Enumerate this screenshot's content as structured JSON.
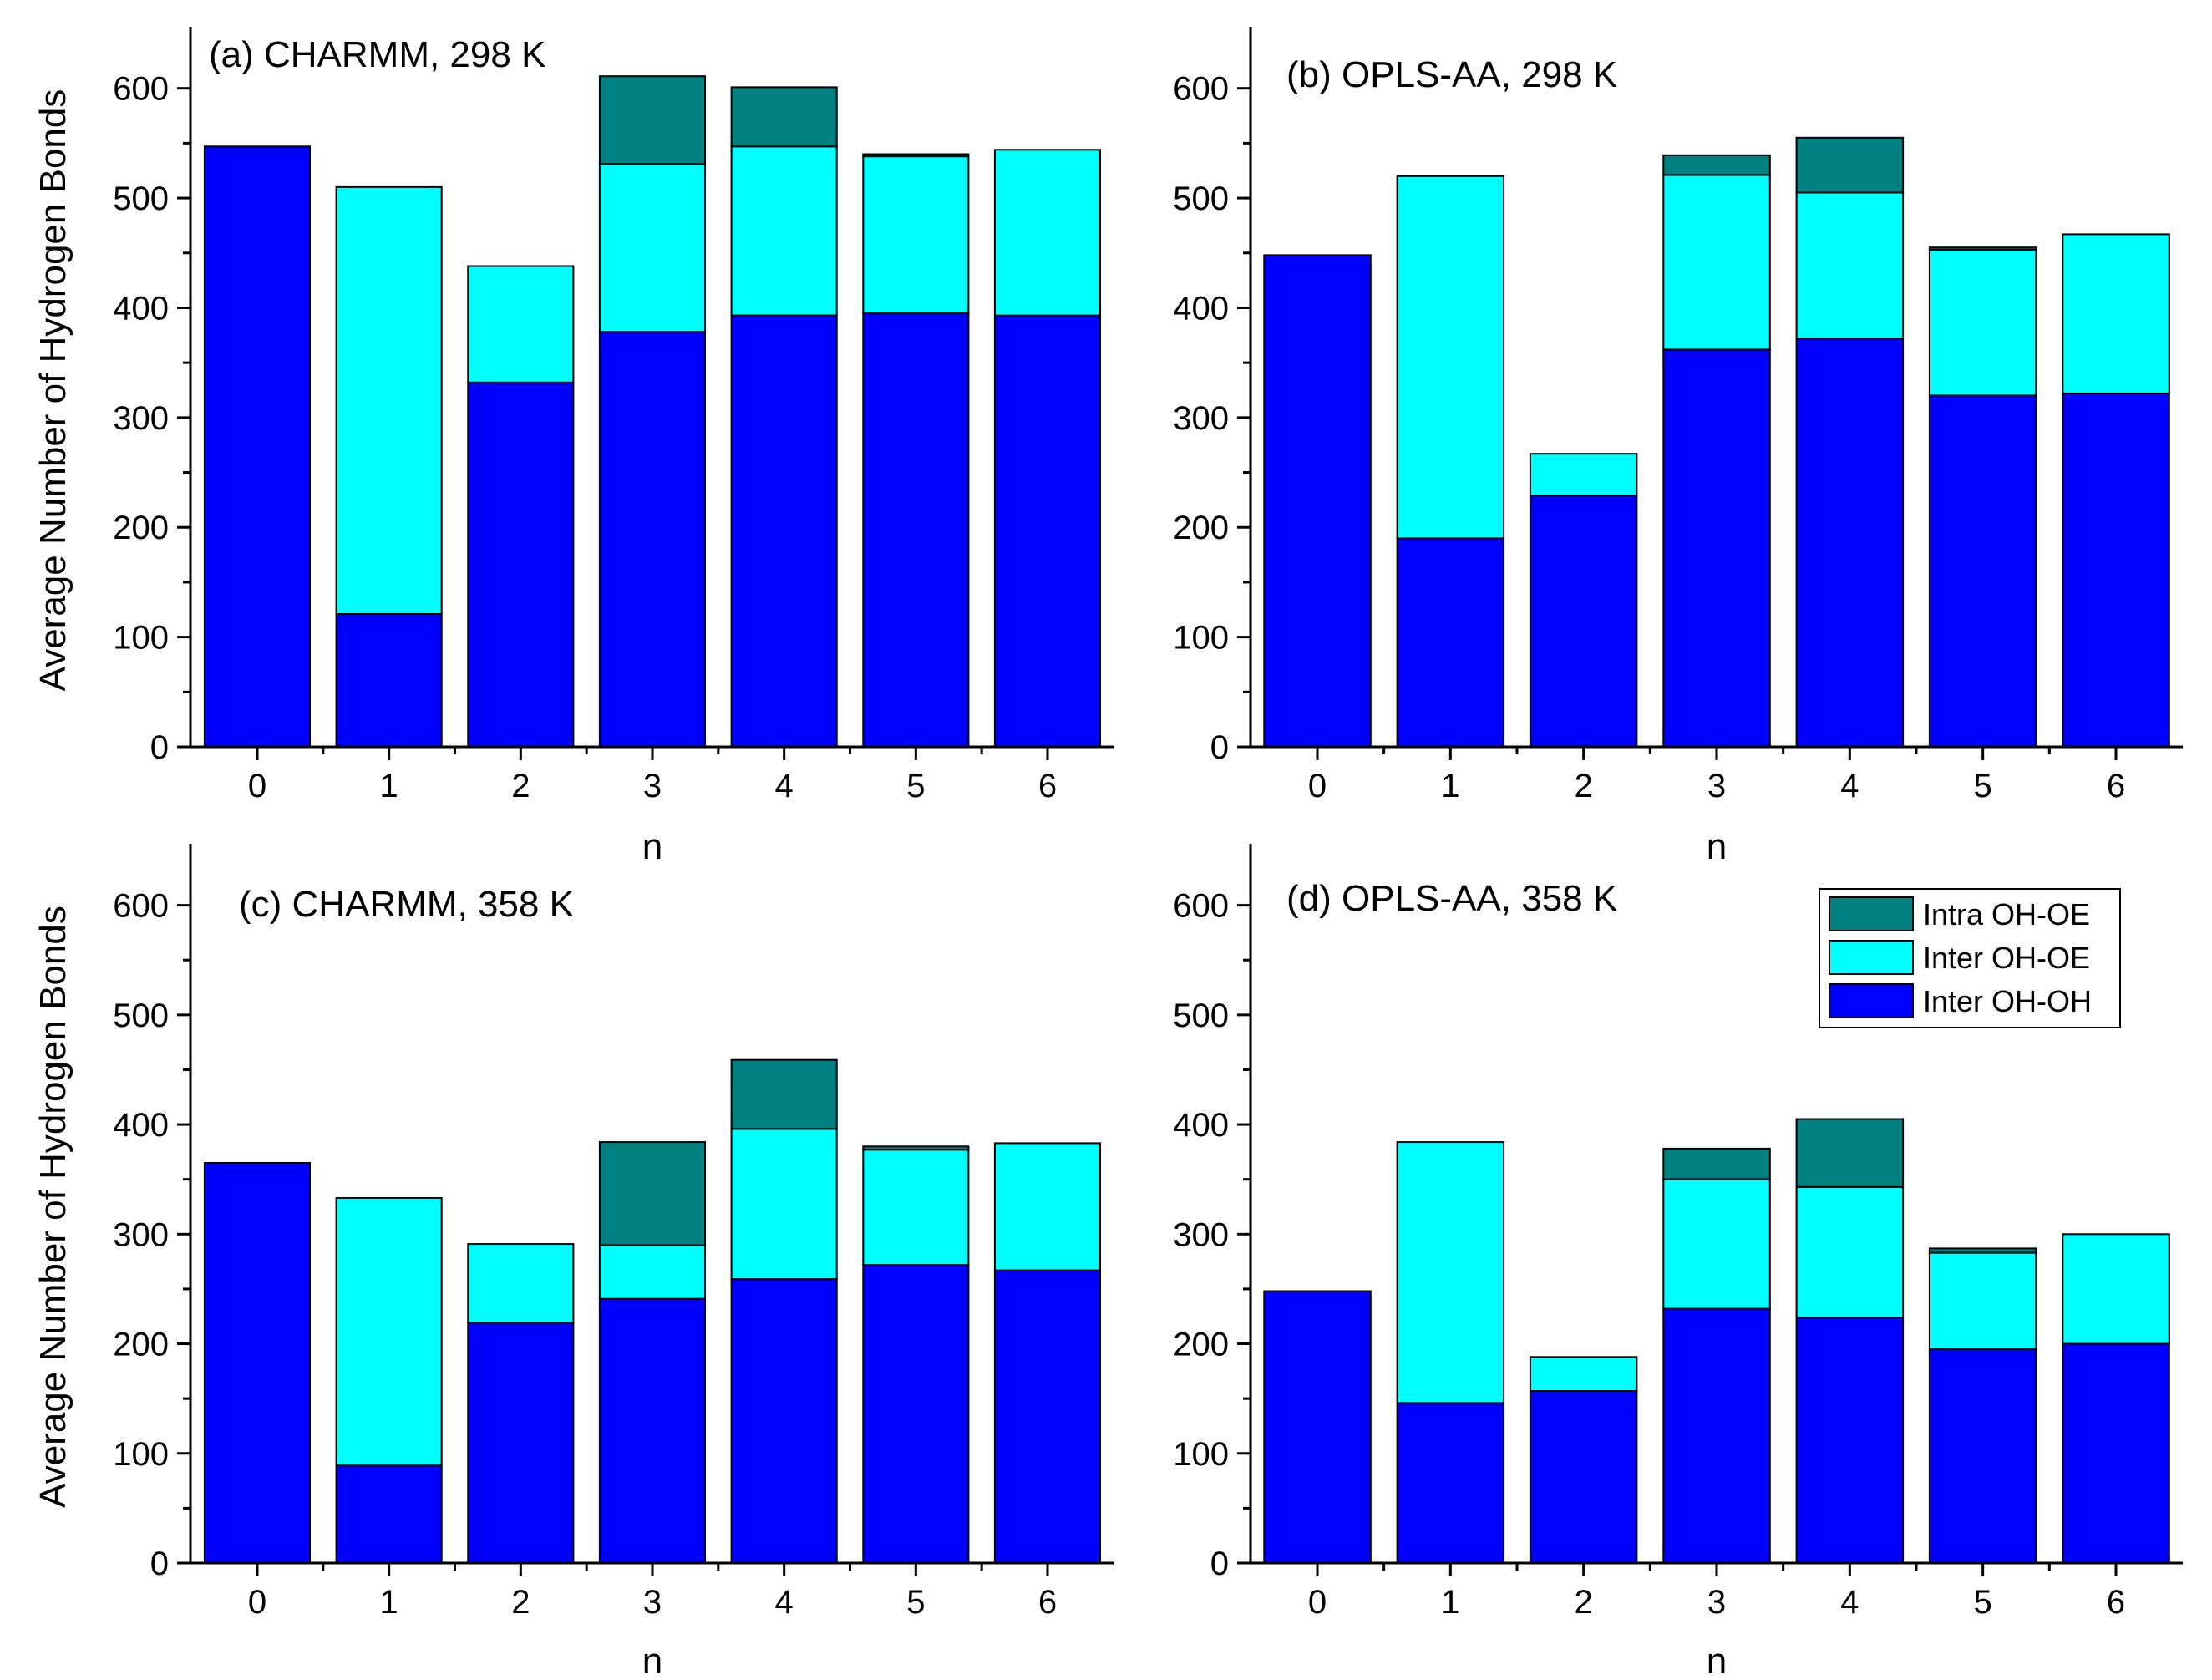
{
  "figure": {
    "ylabel": "Average Number of Hydrogen Bonds",
    "xlabel": "n"
  },
  "colors": {
    "intra_oh_oe": "#008080",
    "inter_oh_oe": "#00FFFF",
    "inter_oh_oh": "#0000FF"
  },
  "legend": {
    "items": [
      {
        "key": "intra_oh_oe",
        "label": "Intra OH-OE"
      },
      {
        "key": "inter_oh_oe",
        "label": "Inter OH-OE"
      },
      {
        "key": "inter_oh_oh",
        "label": "Inter OH-OH"
      }
    ]
  },
  "chart_data": [
    {
      "type": "bar",
      "stacked": true,
      "title": "(a) CHARMM, 298 K",
      "xlabel": "n",
      "ylabel": "Average Number of Hydrogen Bonds",
      "categories": [
        "0",
        "1",
        "2",
        "3",
        "4",
        "5",
        "6"
      ],
      "yticks": [
        0,
        100,
        200,
        300,
        400,
        500,
        600
      ],
      "ylim": [
        0,
        650
      ],
      "series": [
        {
          "key": "inter_oh_oh",
          "name": "Inter OH-OH",
          "values": [
            547,
            121,
            332,
            378,
            393,
            395,
            393
          ]
        },
        {
          "key": "inter_oh_oe",
          "name": "Inter OH-OE",
          "values": [
            0,
            389,
            106,
            153,
            154,
            143,
            151
          ]
        },
        {
          "key": "intra_oh_oe",
          "name": "Intra OH-OE",
          "values": [
            0,
            0,
            0,
            80,
            54,
            2,
            0
          ]
        }
      ]
    },
    {
      "type": "bar",
      "stacked": true,
      "title": "(b) OPLS-AA, 298 K",
      "xlabel": "n",
      "ylabel": "",
      "categories": [
        "0",
        "1",
        "2",
        "3",
        "4",
        "5",
        "6"
      ],
      "yticks": [
        0,
        100,
        200,
        300,
        400,
        500,
        600
      ],
      "ylim": [
        0,
        650
      ],
      "series": [
        {
          "key": "inter_oh_oh",
          "name": "Inter OH-OH",
          "values": [
            448,
            190,
            229,
            362,
            372,
            320,
            322
          ]
        },
        {
          "key": "inter_oh_oe",
          "name": "Inter OH-OE",
          "values": [
            0,
            330,
            38,
            159,
            133,
            133,
            145
          ]
        },
        {
          "key": "intra_oh_oe",
          "name": "Intra OH-OE",
          "values": [
            0,
            0,
            0,
            18,
            50,
            2,
            0
          ]
        }
      ]
    },
    {
      "type": "bar",
      "stacked": true,
      "title": "(c) CHARMM, 358 K",
      "xlabel": "n",
      "ylabel": "Average Number of Hydrogen Bonds",
      "categories": [
        "0",
        "1",
        "2",
        "3",
        "4",
        "5",
        "6"
      ],
      "yticks": [
        0,
        100,
        200,
        300,
        400,
        500,
        600
      ],
      "ylim": [
        0,
        650
      ],
      "series": [
        {
          "key": "inter_oh_oh",
          "name": "Inter OH-OH",
          "values": [
            365,
            89,
            219,
            241,
            259,
            272,
            267
          ]
        },
        {
          "key": "inter_oh_oe",
          "name": "Inter OH-OE",
          "values": [
            0,
            244,
            72,
            49,
            137,
            105,
            116
          ]
        },
        {
          "key": "intra_oh_oe",
          "name": "Intra OH-OE",
          "values": [
            0,
            0,
            0,
            94,
            63,
            3,
            0
          ]
        }
      ]
    },
    {
      "type": "bar",
      "stacked": true,
      "title": "(d) OPLS-AA, 358 K",
      "xlabel": "n",
      "ylabel": "",
      "categories": [
        "0",
        "1",
        "2",
        "3",
        "4",
        "5",
        "6"
      ],
      "yticks": [
        0,
        100,
        200,
        300,
        400,
        500,
        600
      ],
      "ylim": [
        0,
        650
      ],
      "legend": "top-right",
      "series": [
        {
          "key": "inter_oh_oh",
          "name": "Inter OH-OH",
          "values": [
            248,
            146,
            157,
            232,
            224,
            195,
            200
          ]
        },
        {
          "key": "inter_oh_oe",
          "name": "Inter OH-OE",
          "values": [
            0,
            238,
            31,
            118,
            119,
            88,
            100
          ]
        },
        {
          "key": "intra_oh_oe",
          "name": "Intra OH-OE",
          "values": [
            0,
            0,
            0,
            28,
            62,
            4,
            0
          ]
        }
      ]
    }
  ]
}
